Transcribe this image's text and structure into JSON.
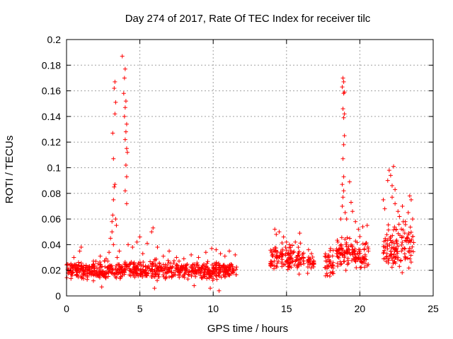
{
  "chart_data": {
    "type": "scatter",
    "title": "Day 274 of 2017, Rate Of TEC Index for receiver tilc",
    "xlabel": "GPS time / hours",
    "ylabel": "ROTI / TECUs",
    "xlim": [
      0,
      25
    ],
    "ylim": [
      0,
      0.2
    ],
    "xticks": [
      0,
      5,
      10,
      15,
      20,
      25
    ],
    "xtick_labels": [
      "0",
      "5",
      "10",
      "15",
      "20",
      "25"
    ],
    "yticks": [
      0,
      0.02,
      0.04,
      0.06,
      0.08,
      0.1,
      0.12,
      0.14,
      0.16,
      0.18,
      0.2
    ],
    "ytick_labels": [
      "0",
      "0.02",
      "0.04",
      "0.06",
      "0.08",
      "0.1",
      "0.12",
      "0.14",
      "0.16",
      "0.18",
      "0.2"
    ],
    "grid": true,
    "marker": "+",
    "color": "#ff0000",
    "dense_bands": [
      {
        "x_start": 0.0,
        "x_end": 11.6,
        "y_low": 0.01,
        "y_high": 0.03
      },
      {
        "x_start": 13.9,
        "x_end": 16.2,
        "y_low": 0.015,
        "y_high": 0.045
      },
      {
        "x_start": 16.4,
        "x_end": 16.9,
        "y_low": 0.015,
        "y_high": 0.035
      },
      {
        "x_start": 17.6,
        "x_end": 18.2,
        "y_low": 0.012,
        "y_high": 0.038
      },
      {
        "x_start": 18.4,
        "x_end": 20.6,
        "y_low": 0.015,
        "y_high": 0.05
      },
      {
        "x_start": 21.6,
        "x_end": 23.7,
        "y_low": 0.015,
        "y_high": 0.065
      }
    ],
    "points": [
      [
        0.1,
        0.018
      ],
      [
        0.3,
        0.025
      ],
      [
        0.5,
        0.03
      ],
      [
        0.7,
        0.022
      ],
      [
        0.9,
        0.035
      ],
      [
        1.0,
        0.038
      ],
      [
        1.3,
        0.016
      ],
      [
        1.6,
        0.021
      ],
      [
        2.0,
        0.027
      ],
      [
        2.3,
        0.031
      ],
      [
        2.5,
        0.019
      ],
      [
        2.7,
        0.029
      ],
      [
        2.9,
        0.034
      ],
      [
        3.0,
        0.045
      ],
      [
        3.1,
        0.058
      ],
      [
        3.15,
        0.063
      ],
      [
        3.2,
        0.075
      ],
      [
        3.25,
        0.085
      ],
      [
        3.3,
        0.087
      ],
      [
        3.2,
        0.107
      ],
      [
        3.15,
        0.127
      ],
      [
        3.3,
        0.142
      ],
      [
        3.35,
        0.151
      ],
      [
        3.25,
        0.162
      ],
      [
        3.3,
        0.167
      ],
      [
        3.1,
        0.05
      ],
      [
        3.2,
        0.04
      ],
      [
        3.35,
        0.06
      ],
      [
        3.4,
        0.055
      ],
      [
        3.45,
        0.03
      ],
      [
        3.6,
        0.035
      ],
      [
        3.8,
        0.187
      ],
      [
        3.9,
        0.158
      ],
      [
        3.95,
        0.17
      ],
      [
        4.0,
        0.177
      ],
      [
        4.0,
        0.147
      ],
      [
        4.05,
        0.152
      ],
      [
        3.95,
        0.14
      ],
      [
        4.1,
        0.134
      ],
      [
        4.05,
        0.128
      ],
      [
        4.1,
        0.115
      ],
      [
        4.0,
        0.122
      ],
      [
        4.15,
        0.112
      ],
      [
        4.05,
        0.102
      ],
      [
        4.1,
        0.093
      ],
      [
        4.0,
        0.082
      ],
      [
        4.1,
        0.072
      ],
      [
        4.2,
        0.04
      ],
      [
        4.5,
        0.038
      ],
      [
        4.8,
        0.042
      ],
      [
        5.0,
        0.046
      ],
      [
        5.2,
        0.033
      ],
      [
        5.5,
        0.041
      ],
      [
        5.8,
        0.05
      ],
      [
        5.9,
        0.053
      ],
      [
        6.2,
        0.038
      ],
      [
        6.6,
        0.031
      ],
      [
        7.0,
        0.035
      ],
      [
        7.5,
        0.03
      ],
      [
        8.0,
        0.029
      ],
      [
        8.5,
        0.032
      ],
      [
        9.0,
        0.03
      ],
      [
        9.5,
        0.034
      ],
      [
        9.9,
        0.037
      ],
      [
        10.2,
        0.036
      ],
      [
        10.5,
        0.033
      ],
      [
        10.8,
        0.031
      ],
      [
        11.1,
        0.035
      ],
      [
        11.5,
        0.032
      ],
      [
        8.7,
        0.008
      ],
      [
        9.8,
        0.006
      ],
      [
        10.4,
        0.004
      ],
      [
        2.4,
        0.007
      ],
      [
        6.0,
        0.006
      ],
      [
        14.2,
        0.052
      ],
      [
        14.3,
        0.048
      ],
      [
        14.5,
        0.05
      ],
      [
        14.8,
        0.046
      ],
      [
        15.2,
        0.04
      ],
      [
        15.6,
        0.042
      ],
      [
        15.9,
        0.049
      ],
      [
        16.5,
        0.036
      ],
      [
        16.7,
        0.033
      ],
      [
        17.8,
        0.03
      ],
      [
        18.0,
        0.037
      ],
      [
        18.5,
        0.042
      ],
      [
        18.7,
        0.06
      ],
      [
        18.8,
        0.07
      ],
      [
        18.85,
        0.077
      ],
      [
        18.9,
        0.082
      ],
      [
        18.8,
        0.087
      ],
      [
        18.9,
        0.093
      ],
      [
        18.85,
        0.107
      ],
      [
        18.9,
        0.118
      ],
      [
        18.95,
        0.125
      ],
      [
        18.9,
        0.139
      ],
      [
        18.95,
        0.142
      ],
      [
        18.85,
        0.146
      ],
      [
        18.9,
        0.158
      ],
      [
        18.95,
        0.159
      ],
      [
        18.8,
        0.163
      ],
      [
        18.9,
        0.167
      ],
      [
        18.85,
        0.17
      ],
      [
        19.0,
        0.065
      ],
      [
        19.1,
        0.06
      ],
      [
        19.3,
        0.089
      ],
      [
        19.4,
        0.073
      ],
      [
        19.5,
        0.066
      ],
      [
        19.7,
        0.058
      ],
      [
        19.9,
        0.052
      ],
      [
        20.2,
        0.054
      ],
      [
        20.5,
        0.055
      ],
      [
        21.6,
        0.075
      ],
      [
        21.7,
        0.068
      ],
      [
        21.9,
        0.09
      ],
      [
        22.0,
        0.098
      ],
      [
        22.1,
        0.094
      ],
      [
        22.2,
        0.086
      ],
      [
        22.3,
        0.101
      ],
      [
        22.4,
        0.083
      ],
      [
        22.2,
        0.077
      ],
      [
        22.4,
        0.072
      ],
      [
        22.6,
        0.066
      ],
      [
        22.7,
        0.062
      ],
      [
        22.9,
        0.07
      ],
      [
        23.1,
        0.058
      ],
      [
        23.3,
        0.065
      ],
      [
        23.4,
        0.078
      ],
      [
        23.5,
        0.075
      ],
      [
        23.6,
        0.06
      ]
    ]
  }
}
